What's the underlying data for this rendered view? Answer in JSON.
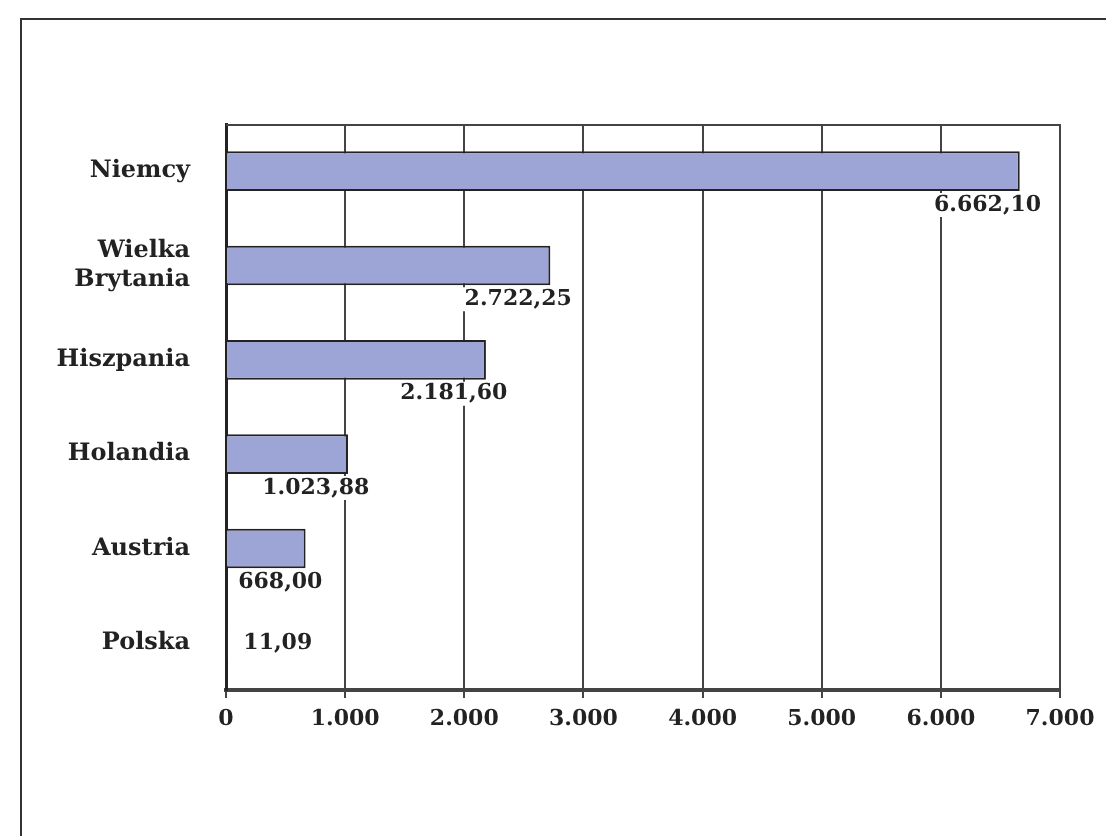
{
  "chart_data": {
    "type": "bar",
    "orientation": "horizontal",
    "categories": [
      "Niemcy",
      "Wielka Brytania",
      "Hiszpania",
      "Holandia",
      "Austria",
      "Polska"
    ],
    "values": [
      6662.1,
      2722.25,
      2181.6,
      1023.88,
      668.0,
      11.09
    ],
    "color": "#9ca5d6",
    "value_labels": [
      "6.662,10",
      "2.722,25",
      "2.181,60",
      "1.023,88",
      "668,00",
      "11,09"
    ],
    "xlim": [
      0,
      7000
    ],
    "xticks": [
      0,
      {
        "value": 1000,
        "label": "1.000"
      },
      {
        "value": 2000,
        "label": "2.000"
      },
      {
        "value": 3000,
        "label": "3.000"
      },
      {
        "value": 4000,
        "label": "4.000"
      },
      {
        "value": 5000,
        "label": "5.000"
      },
      {
        "value": 6000,
        "label": "6.000"
      },
      {
        "value": 7000,
        "label": "7.000"
      }
    ],
    "grid": "x",
    "legend": false
  }
}
